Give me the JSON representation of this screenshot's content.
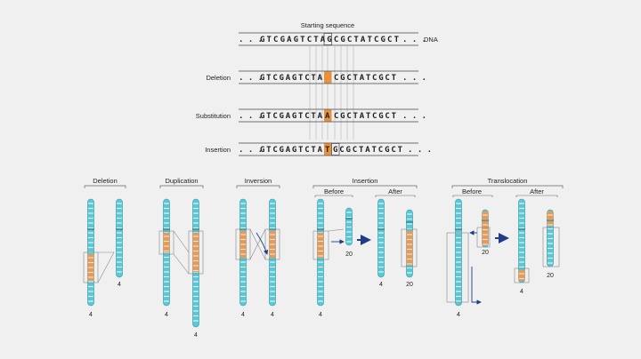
{
  "colors": {
    "chromosome": "#5cc6d2",
    "chromosome_stroke": "#2e9bab",
    "band": "#e59a5c",
    "highlight": "#e8913c",
    "arrow": "#1f3c88",
    "line": "#444444"
  },
  "sequences": {
    "title": "Starting sequence",
    "dna_label": "DNA",
    "start": {
      "prefix": ". . . ",
      "seq": "GTCGAGTCTAGCGCTATCGCT",
      "suffix": ". . ."
    },
    "rows": [
      {
        "label": "Deletion",
        "prefix": ". . . ",
        "seq": "GTCGAGTCTA",
        "highlight": "",
        "rest": "CGCTATCGCT",
        "suffix": ". . ."
      },
      {
        "label": "Substitution",
        "prefix": ". . . ",
        "seq": "GTCGAGTCTA",
        "highlight": "A",
        "rest": "CGCTATCGCT",
        "suffix": ". . ."
      },
      {
        "label": "Insertion",
        "prefix": ". . . ",
        "seq": "GTCGAGTCTA",
        "highlight": "T",
        "rest": "GCGCTATCGCT",
        "suffix": ". . ."
      }
    ]
  },
  "panels": {
    "deletion": {
      "title": "Deletion",
      "left_num": "4",
      "right_num": "4"
    },
    "duplication": {
      "title": "Duplication",
      "left_num": "4",
      "right_num": "4"
    },
    "inversion": {
      "title": "Inversion",
      "left_num": "4",
      "right_num": "4"
    },
    "insertion": {
      "title": "Insertion",
      "before": "Before",
      "after": "After",
      "nums": [
        "4",
        "20",
        "4",
        "20"
      ]
    },
    "translocation": {
      "title": "Translocation",
      "before": "Before",
      "after": "After",
      "nums": [
        "4",
        "20",
        "4",
        "20"
      ]
    }
  }
}
